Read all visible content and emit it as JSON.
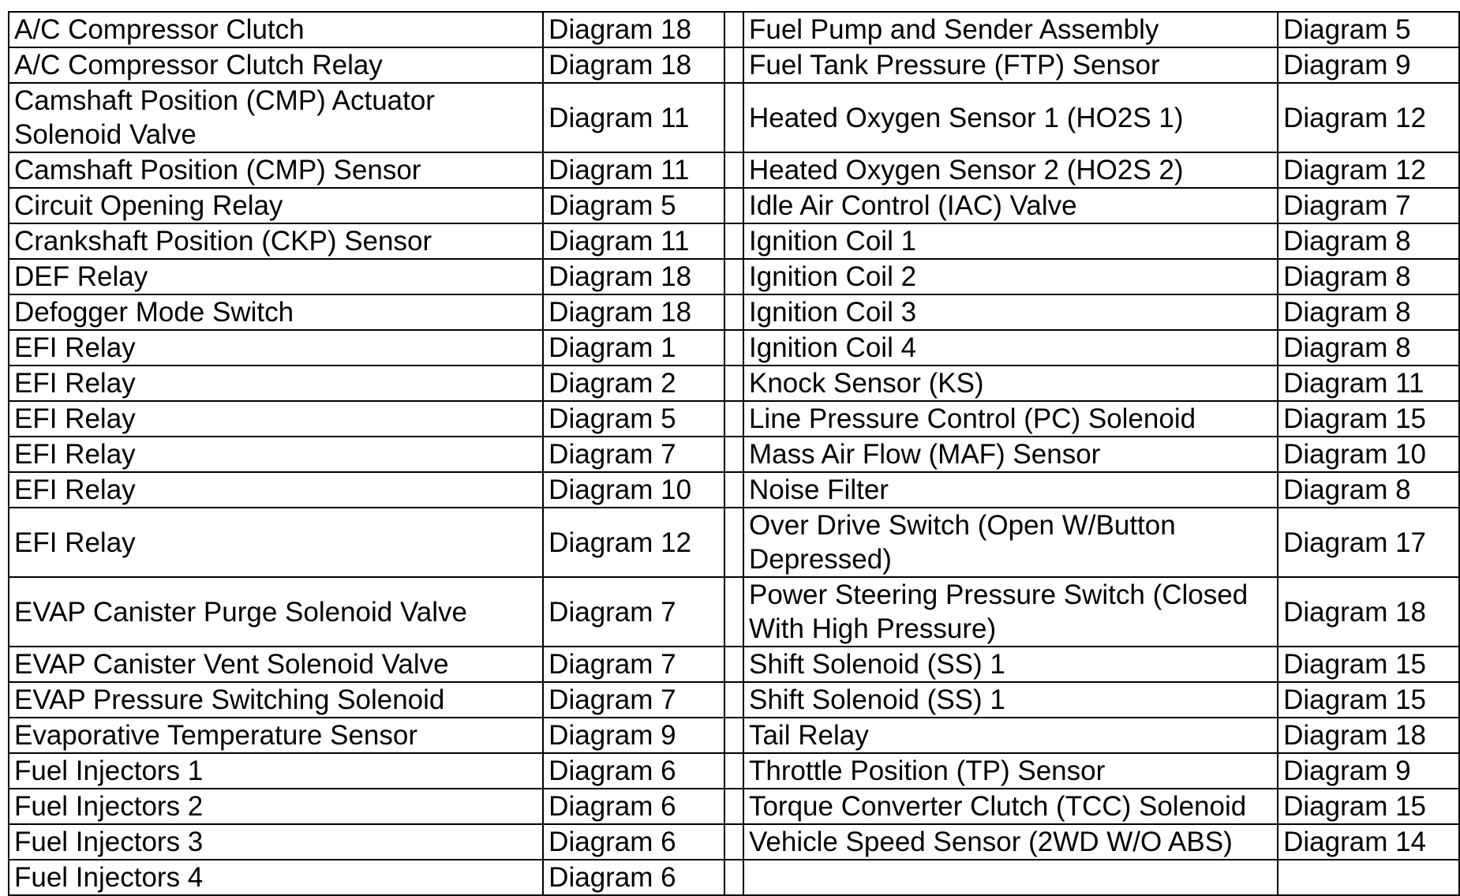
{
  "left_column": [
    {
      "component": "A/C Compressor Clutch",
      "diagram": "Diagram 18"
    },
    {
      "component": "A/C Compressor Clutch Relay",
      "diagram": "Diagram 18"
    },
    {
      "component": "Camshaft Position (CMP) Actuator\nSolenoid Valve",
      "diagram": "Diagram 11"
    },
    {
      "component": "Camshaft Position (CMP) Sensor",
      "diagram": "Diagram 11"
    },
    {
      "component": "Circuit Opening Relay",
      "diagram": "Diagram 5"
    },
    {
      "component": "Crankshaft Position (CKP) Sensor",
      "diagram": "Diagram 11"
    },
    {
      "component": "DEF Relay",
      "diagram": "Diagram 18"
    },
    {
      "component": "Defogger Mode Switch",
      "diagram": "Diagram 18"
    },
    {
      "component": "EFI Relay",
      "diagram": "Diagram 1"
    },
    {
      "component": "EFI Relay",
      "diagram": "Diagram 2"
    },
    {
      "component": "EFI Relay",
      "diagram": "Diagram 5"
    },
    {
      "component": "EFI Relay",
      "diagram": "Diagram 7"
    },
    {
      "component": "EFI Relay",
      "diagram": "Diagram 10"
    },
    {
      "component": "EFI Relay",
      "diagram": "Diagram 12"
    },
    {
      "component": "EVAP Canister Purge Solenoid Valve",
      "diagram": "Diagram 7"
    },
    {
      "component": "EVAP Canister Vent Solenoid Valve",
      "diagram": "Diagram 7"
    },
    {
      "component": "EVAP Pressure Switching Solenoid",
      "diagram": "Diagram 7"
    },
    {
      "component": "Evaporative Temperature Sensor",
      "diagram": "Diagram 9"
    },
    {
      "component": "Fuel Injectors 1",
      "diagram": "Diagram 6"
    },
    {
      "component": "Fuel Injectors 2",
      "diagram": "Diagram 6"
    },
    {
      "component": "Fuel Injectors 3",
      "diagram": "Diagram 6"
    },
    {
      "component": "Fuel Injectors 4",
      "diagram": "Diagram 6"
    }
  ],
  "right_column": [
    {
      "component": "Fuel Pump and Sender Assembly",
      "diagram": "Diagram 5"
    },
    {
      "component": "Fuel Tank Pressure (FTP) Sensor",
      "diagram": "Diagram 9"
    },
    {
      "component": "Heated Oxygen Sensor 1 (HO2S 1)",
      "diagram": "Diagram 12"
    },
    {
      "component": "Heated Oxygen Sensor 2 (HO2S 2)",
      "diagram": "Diagram 12"
    },
    {
      "component": "Idle Air Control (IAC) Valve",
      "diagram": "Diagram 7"
    },
    {
      "component": "Ignition Coil 1",
      "diagram": "Diagram 8"
    },
    {
      "component": "Ignition Coil 2",
      "diagram": "Diagram 8"
    },
    {
      "component": "Ignition Coil 3",
      "diagram": "Diagram 8"
    },
    {
      "component": "Ignition Coil 4",
      "diagram": "Diagram 8"
    },
    {
      "component": "Knock Sensor (KS)",
      "diagram": "Diagram 11"
    },
    {
      "component": "Line Pressure Control (PC) Solenoid",
      "diagram": "Diagram 15"
    },
    {
      "component": "Mass Air Flow (MAF) Sensor",
      "diagram": "Diagram 10"
    },
    {
      "component": "Noise Filter",
      "diagram": "Diagram 8"
    },
    {
      "component": "Over Drive Switch (Open W/Button\nDepressed)",
      "diagram": "Diagram 17"
    },
    {
      "component": "Power Steering Pressure Switch (Closed\nWith High Pressure)",
      "diagram": "Diagram 18"
    },
    {
      "component": "Shift Solenoid (SS) 1",
      "diagram": "Diagram 15"
    },
    {
      "component": "Shift Solenoid (SS) 1",
      "diagram": "Diagram 15"
    },
    {
      "component": "Tail Relay",
      "diagram": "Diagram 18"
    },
    {
      "component": "Throttle Position (TP) Sensor",
      "diagram": "Diagram 9"
    },
    {
      "component": "Torque Converter Clutch (TCC) Solenoid",
      "diagram": "Diagram 15"
    },
    {
      "component": "Vehicle Speed Sensor (2WD W/O ABS)",
      "diagram": "Diagram 14"
    },
    {
      "component": "",
      "diagram": ""
    }
  ]
}
